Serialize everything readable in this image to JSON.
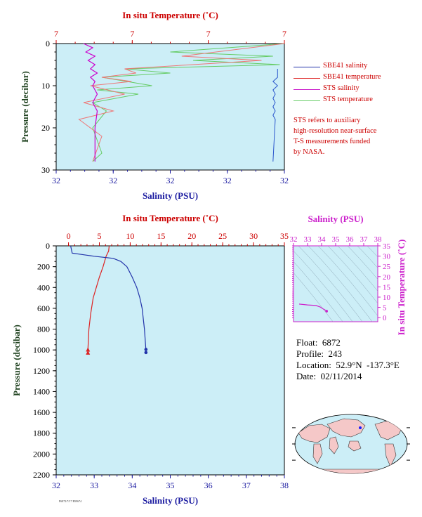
{
  "chart_data": [
    {
      "type": "line",
      "name": "upper-profile",
      "xlabel_top": "In situ Temperature (˚C)",
      "xlabel_bottom": "Salinity (PSU)",
      "ylabel": "Pressure (decibar)",
      "top_ticks": [
        "7",
        "7",
        "7",
        "7"
      ],
      "bottom_ticks": [
        "32",
        "32",
        "32",
        "32",
        "32"
      ],
      "y_ticks": [
        "0",
        "10",
        "20",
        "30"
      ],
      "ylim": [
        0,
        30
      ],
      "series": [
        {
          "name": "SBE41 salinity",
          "color": "#2a55cc",
          "x": [
            0.97,
            0.97,
            0.95,
            0.97,
            0.95,
            0.96,
            0.95,
            0.96,
            0.95,
            0.96,
            0.95,
            0.96,
            0.95
          ],
          "y": [
            6,
            8,
            9,
            10,
            11,
            12,
            13,
            14,
            15,
            16,
            17,
            18,
            28
          ]
        },
        {
          "name": "STS salinity",
          "color": "#cc00cc",
          "x": [
            0.12,
            0.16,
            0.13,
            0.17,
            0.14,
            0.17,
            0.15,
            0.18,
            0.15,
            0.17,
            0.16,
            0.18,
            0.16,
            0.18,
            0.17,
            0.17
          ],
          "y": [
            0,
            1,
            2,
            3,
            4,
            5,
            6,
            7,
            8,
            9,
            10,
            12,
            14,
            16,
            20,
            28
          ]
        },
        {
          "name": "STS temperature",
          "color": "#66cc66",
          "x": [
            1.0,
            0.5,
            0.95,
            0.6,
            0.98,
            0.3,
            0.5,
            0.2,
            0.42,
            0.18,
            0.36,
            0.16,
            0.22,
            0.16,
            0.2,
            0.16
          ],
          "y": [
            0,
            2,
            3,
            4,
            5,
            6,
            7,
            8,
            10,
            11,
            12,
            14,
            16,
            20,
            26,
            28
          ]
        },
        {
          "name": "SBE41 temperature",
          "color": "#ee7777",
          "x": [
            1.0,
            0.55,
            0.9,
            0.3,
            0.35,
            0.2,
            0.33,
            0.15,
            0.3,
            0.12,
            0.25,
            0.1,
            0.2,
            0.16
          ],
          "y": [
            0,
            3,
            4,
            6,
            7,
            8,
            9,
            10,
            12,
            14,
            16,
            18,
            22,
            28
          ]
        }
      ],
      "legend": [
        "SBE41 salinity",
        "SBE41 temperature",
        "STS salinity",
        "STS temperature"
      ],
      "legend_colors": [
        "#2233aa",
        "#dd2222",
        "#cc22cc",
        "#66cc66"
      ],
      "note": "STS refers to auxiliary\nhigh-resolution near-surface\nT-S measurements funded\nby NASA."
    },
    {
      "type": "line",
      "name": "deep-profile",
      "xlabel_top": "In situ Temperature (˚C)",
      "xlabel_bottom": "Salinity (PSU)",
      "ylabel": "Pressure (decibar)",
      "top_ticks": [
        0,
        5,
        10,
        15,
        20,
        25,
        30,
        35
      ],
      "bottom_ticks": [
        32,
        33,
        34,
        35,
        36,
        37,
        38
      ],
      "y_ticks": [
        0,
        200,
        400,
        600,
        800,
        1000,
        1200,
        1400,
        1600,
        1800,
        2000,
        2200
      ],
      "xlim_temp": [
        -2,
        35
      ],
      "xlim_sal": [
        32,
        38
      ],
      "ylim": [
        0,
        2200
      ],
      "series": [
        {
          "name": "Temperature",
          "color": "#dd2222",
          "x": [
            6.6,
            6.5,
            6.1,
            5.6,
            5.0,
            4.5,
            4.0,
            3.6,
            3.3,
            3.15
          ],
          "y": [
            0,
            50,
            100,
            200,
            300,
            400,
            500,
            650,
            800,
            1000
          ]
        },
        {
          "name": "Salinity",
          "color": "#2233aa",
          "x": [
            32.38,
            32.42,
            33.0,
            33.5,
            33.7,
            33.86,
            34.0,
            34.12,
            34.2,
            34.26,
            34.32,
            34.36
          ],
          "y": [
            0,
            70,
            100,
            120,
            150,
            200,
            300,
            400,
            500,
            600,
            800,
            1000
          ]
        }
      ],
      "end_markers": [
        {
          "series": "Temperature",
          "x": [
            3.15,
            3.15
          ],
          "y": [
            995,
            1025
          ]
        },
        {
          "series": "Salinity",
          "x": [
            34.36,
            34.36
          ],
          "y": [
            995,
            1025
          ]
        }
      ]
    },
    {
      "type": "line",
      "name": "ts-diagram",
      "xlabel": "Salinity (PSU)",
      "ylabel": "In situ Temperature (˚C)",
      "x_ticks": [
        32,
        33,
        34,
        35,
        36,
        37,
        38
      ],
      "y_ticks": [
        0,
        5,
        10,
        15,
        20,
        25,
        30,
        35
      ],
      "xlim": [
        32,
        38
      ],
      "ylim": [
        -2,
        35
      ],
      "series": [
        {
          "name": "T-S",
          "color": "#cc22cc",
          "x": [
            32.4,
            33.0,
            33.6,
            33.9,
            34.1,
            34.3,
            34.36
          ],
          "y": [
            6.6,
            6.2,
            5.9,
            5.2,
            4.3,
            3.5,
            3.15
          ]
        }
      ]
    }
  ],
  "info": {
    "float": "Float:  6872",
    "profile": "Profile:  243",
    "location": "Location:  52.9°N  -137.3°E",
    "date": "Date:  02/11/2014"
  },
  "footer_code": "P6872/7/17 B59674",
  "colors": {
    "panel_bg": "#cceef7",
    "axis_top": "#cc0000",
    "axis_bottom": "#1a1aa0",
    "axis_left": "#224422",
    "ts_axis": "#cc22cc",
    "map_ocean": "#cceef7",
    "map_land": "#f5c8c8"
  },
  "map": {
    "marker_lat": 52.9,
    "marker_lon": -137.3
  }
}
